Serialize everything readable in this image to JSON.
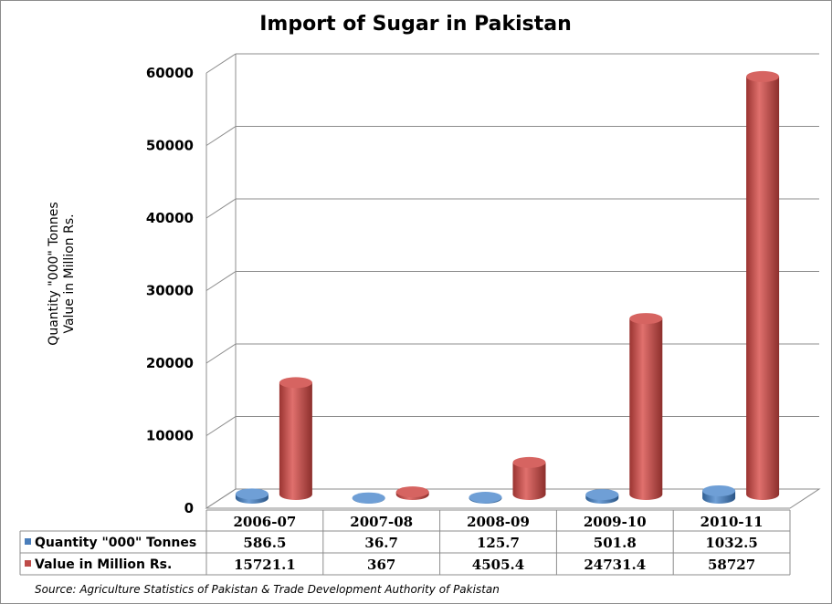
{
  "chart_data": {
    "type": "bar",
    "title": "Import of Sugar in Pakistan",
    "ylabel_lines": [
      "Quantity \"000\" Tonnes",
      "Value in Million Rs."
    ],
    "categories": [
      "2006-07",
      "2007-08",
      "2008-09",
      "2009-10",
      "2010-11"
    ],
    "series": [
      {
        "name": "Quantity \"000\" Tonnes",
        "color": "#4a7ebb",
        "values": [
          586.5,
          36.7,
          125.7,
          501.8,
          1032.5
        ],
        "labels": [
          "586.5",
          "36.7",
          "125.7",
          "501.8",
          "1032.5"
        ]
      },
      {
        "name": "Value in Million Rs.",
        "color": "#be4b48",
        "values": [
          15721.1,
          367,
          4505.4,
          24731.4,
          58727
        ],
        "labels": [
          "15721.1",
          "367",
          "4505.4",
          "24731.4",
          "58727"
        ]
      }
    ],
    "yticks": [
      "0",
      "10000",
      "20000",
      "30000",
      "40000",
      "50000",
      "60000"
    ],
    "ylim": [
      0,
      60000
    ],
    "grid": true,
    "legend": "data-table"
  },
  "source": "Source: Agriculture Statistics of Pakistan & Trade Development Authority of Pakistan"
}
